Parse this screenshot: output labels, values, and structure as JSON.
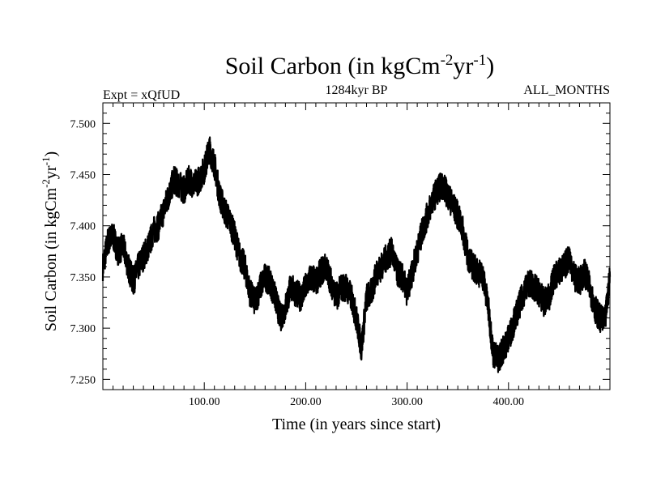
{
  "chart_data": {
    "type": "line",
    "title_main": "Soil Carbon (in kgCm",
    "title_sup1": "-2",
    "title_mid": "yr",
    "title_sup2": "-1",
    "title_end": ")",
    "left_label": "Expt = xQfUD",
    "center_label": "1284kyr BP",
    "right_label": "ALL_MONTHS",
    "xlabel": "Time (in years since start)",
    "ylabel_main": "Soil Carbon (in kgCm",
    "ylabel_sup1": "-2",
    "ylabel_mid": "yr",
    "ylabel_sup2": "-1",
    "ylabel_end": ")",
    "xlim": [
      0,
      500
    ],
    "ylim": [
      7.24,
      7.52
    ],
    "x_ticks": [
      100,
      200,
      300,
      400
    ],
    "x_tick_labels": [
      "100.00",
      "200.00",
      "300.00",
      "400.00"
    ],
    "y_ticks": [
      7.25,
      7.3,
      7.35,
      7.4,
      7.45,
      7.5
    ],
    "y_tick_labels": [
      "7.250",
      "7.300",
      "7.350",
      "7.400",
      "7.450",
      "7.500"
    ],
    "grid": false,
    "series": [
      {
        "color": "#000000",
        "x": [
          0,
          5,
          10,
          15,
          20,
          25,
          30,
          35,
          40,
          45,
          50,
          55,
          60,
          65,
          70,
          75,
          80,
          85,
          90,
          95,
          100,
          105,
          110,
          115,
          120,
          125,
          130,
          135,
          140,
          145,
          150,
          155,
          160,
          165,
          170,
          175,
          180,
          185,
          190,
          195,
          200,
          205,
          210,
          215,
          220,
          225,
          230,
          235,
          240,
          245,
          250,
          255,
          260,
          265,
          270,
          275,
          280,
          285,
          290,
          295,
          300,
          305,
          310,
          315,
          320,
          325,
          330,
          335,
          340,
          345,
          350,
          355,
          360,
          365,
          370,
          375,
          380,
          385,
          390,
          395,
          400,
          405,
          410,
          415,
          420,
          425,
          430,
          435,
          440,
          445,
          450,
          455,
          460,
          465,
          470,
          475,
          480,
          485,
          490,
          495,
          500
        ],
        "values": [
          7.36,
          7.385,
          7.39,
          7.375,
          7.38,
          7.36,
          7.345,
          7.36,
          7.37,
          7.38,
          7.395,
          7.4,
          7.415,
          7.43,
          7.445,
          7.44,
          7.435,
          7.445,
          7.44,
          7.445,
          7.455,
          7.475,
          7.46,
          7.43,
          7.415,
          7.405,
          7.39,
          7.37,
          7.36,
          7.335,
          7.325,
          7.34,
          7.35,
          7.345,
          7.33,
          7.31,
          7.32,
          7.34,
          7.335,
          7.33,
          7.34,
          7.35,
          7.345,
          7.355,
          7.36,
          7.345,
          7.33,
          7.34,
          7.34,
          7.33,
          7.31,
          7.28,
          7.33,
          7.335,
          7.355,
          7.36,
          7.37,
          7.375,
          7.355,
          7.35,
          7.335,
          7.355,
          7.375,
          7.395,
          7.41,
          7.425,
          7.435,
          7.44,
          7.43,
          7.42,
          7.41,
          7.395,
          7.37,
          7.36,
          7.355,
          7.35,
          7.32,
          7.275,
          7.27,
          7.28,
          7.29,
          7.305,
          7.32,
          7.335,
          7.345,
          7.34,
          7.335,
          7.325,
          7.33,
          7.35,
          7.355,
          7.36,
          7.37,
          7.35,
          7.345,
          7.355,
          7.34,
          7.32,
          7.31,
          7.305,
          7.35
        ]
      }
    ]
  }
}
